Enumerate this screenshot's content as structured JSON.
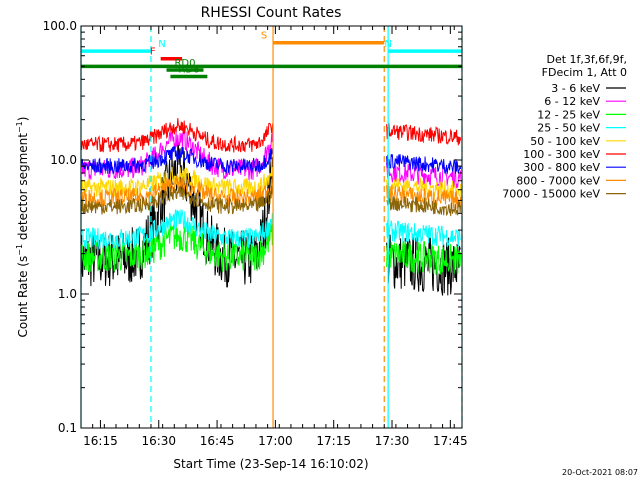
{
  "chart_data": {
    "type": "line",
    "title": "RHESSI Count Rates",
    "xlabel": "Start Time (23-Sep-14 16:10:02)",
    "ylabel_parts": [
      "Count Rate (s",
      "−1",
      " detector segment",
      "−1",
      ")"
    ],
    "y_scale": "log",
    "ylim": [
      0.1,
      100.0
    ],
    "y_ticks": [
      {
        "value": 0.1,
        "label": "0.1"
      },
      {
        "value": 1.0,
        "label": "1.0"
      },
      {
        "value": 10.0,
        "label": "10.0"
      },
      {
        "value": 100.0,
        "label": "100.0"
      }
    ],
    "xlim_minutes": [
      0,
      98
    ],
    "x_ticks": [
      {
        "minute": 5,
        "label": "16:15"
      },
      {
        "minute": 20,
        "label": "16:30"
      },
      {
        "minute": 35,
        "label": "16:45"
      },
      {
        "minute": 50,
        "label": "17:00"
      },
      {
        "minute": 65,
        "label": "17:15"
      },
      {
        "minute": 80,
        "label": "17:30"
      },
      {
        "minute": 95,
        "label": "17:45"
      }
    ],
    "data_segments_minutes": [
      [
        0,
        49.4
      ],
      [
        78.6,
        97.8
      ]
    ],
    "legend_header": [
      "Det 1f,3f,6f,9f,",
      "FDecim 1, Att 0"
    ],
    "series": [
      {
        "name": "3 - 6 keV",
        "color": "#000000",
        "start": 1.8,
        "peak": 10.5,
        "post": 1.6,
        "noise": 0.22
      },
      {
        "name": "6 - 12 keV",
        "color": "#ff00ff",
        "start": 8.5,
        "peak": 16.0,
        "post": 7.5,
        "noise": 0.08
      },
      {
        "name": "12 - 25 keV",
        "color": "#00ff00",
        "start": 1.9,
        "peak": 2.9,
        "post": 1.8,
        "noise": 0.12
      },
      {
        "name": "25 - 50 keV",
        "color": "#00ffff",
        "start": 2.6,
        "peak": 3.8,
        "post": 2.7,
        "noise": 0.08
      },
      {
        "name": "50 - 100 keV",
        "color": "#ffd700",
        "start": 6.2,
        "peak": 8.0,
        "post": 6.0,
        "noise": 0.07
      },
      {
        "name": "100 - 300 keV",
        "color": "#ff0000",
        "start": 13.0,
        "peak": 19.0,
        "post": 15.0,
        "noise": 0.06
      },
      {
        "name": "300 - 800 keV",
        "color": "#0000ff",
        "start": 9.0,
        "peak": 11.5,
        "post": 9.0,
        "noise": 0.06
      },
      {
        "name": "800 - 7000 keV",
        "color": "#ff8c00",
        "start": 5.2,
        "peak": 6.8,
        "post": 5.1,
        "noise": 0.07
      },
      {
        "name": "7000 - 15000 keV",
        "color": "#8b6508",
        "start": 4.5,
        "peak": 5.8,
        "post": 4.4,
        "noise": 0.06
      }
    ],
    "annotations": [
      {
        "label": "N",
        "color": "#00ffff",
        "kind": "flag",
        "start": 0,
        "end": 18,
        "value": 65
      },
      {
        "label": "N",
        "color": "#00ffff",
        "kind": "flag",
        "start": 79,
        "end": 98,
        "value": 65
      },
      {
        "label": "S",
        "color": "#ff8c00",
        "kind": "flag",
        "start": 49.4,
        "end": 78,
        "value": 75
      },
      {
        "label": "F",
        "color": "#ff0000",
        "kind": "flag",
        "start": 20.5,
        "end": 26,
        "value": 57
      },
      {
        "label": "",
        "color": "#008000",
        "kind": "flag",
        "start": 0,
        "end": 98,
        "value": 50
      },
      {
        "label": "RD0",
        "color": "#008000",
        "kind": "flag",
        "start": 22,
        "end": 31.5,
        "value": 47
      },
      {
        "label": "RD6",
        "color": "#008000",
        "kind": "flag",
        "start": 23,
        "end": 32.5,
        "value": 42
      }
    ],
    "vertical_lines": [
      {
        "minute": 0,
        "color": "#00ffff",
        "style": "solid"
      },
      {
        "minute": 18,
        "color": "#00ffff",
        "style": "dashed"
      },
      {
        "minute": 49.4,
        "color": "#ff8c00",
        "style": "solid"
      },
      {
        "minute": 78,
        "color": "#ff8c00",
        "style": "dashed"
      },
      {
        "minute": 79,
        "color": "#00ffff",
        "style": "solid"
      },
      {
        "minute": 98,
        "color": "#00ffff",
        "style": "dashed"
      }
    ],
    "grid": false,
    "legend_position": "right",
    "footer": "20-Oct-2021 08:07"
  }
}
